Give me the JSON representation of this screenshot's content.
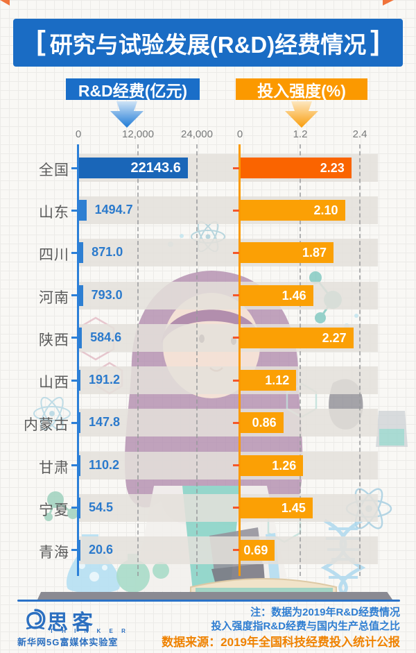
{
  "header": {
    "bracket_left": "[",
    "title": "研究与试验发展(R&D)经费情况",
    "bracket_right": "]",
    "bg_color": "#1a6cc4"
  },
  "legend": {
    "left_label": "R&D经费(亿元)",
    "left_color": "#1a6ec8",
    "right_label": "投入强度(%)",
    "right_color": "#fb9900"
  },
  "chart_data": {
    "type": "bar",
    "orientation": "horizontal",
    "categories": [
      "全国",
      "山东",
      "四川",
      "河南",
      "陕西",
      "山西",
      "内蒙古",
      "甘肃",
      "宁夏",
      "青海"
    ],
    "series": [
      {
        "name": "R&D经费(亿元)",
        "unit": "亿元",
        "values": [
          22143.6,
          1494.7,
          871.0,
          793.0,
          584.6,
          191.2,
          147.8,
          110.2,
          54.5,
          20.6
        ],
        "value_labels": [
          "22143.6",
          "1494.7",
          "871.0",
          "793.0",
          "584.6",
          "191.2",
          "147.8",
          "110.2",
          "54.5",
          "20.6"
        ],
        "axis_max": 24000,
        "axis_ticks": [
          {
            "label": "0",
            "value": 0
          },
          {
            "label": "12,000",
            "value": 12000
          },
          {
            "label": "24,000",
            "value": 24000
          }
        ],
        "bar_color": "#2e7fd2",
        "highlight_color": "#1a66b8",
        "axis_color": "#2b7fd8"
      },
      {
        "name": "投入强度(%)",
        "unit": "%",
        "values": [
          2.23,
          2.1,
          1.87,
          1.46,
          2.27,
          1.12,
          0.86,
          1.26,
          1.45,
          0.69
        ],
        "value_labels": [
          "2.23",
          "2.10",
          "1.87",
          "1.46",
          "2.27",
          "1.12",
          "0.86",
          "1.26",
          "1.45",
          "0.69"
        ],
        "axis_max": 2.4,
        "axis_ticks": [
          {
            "label": "0",
            "value": 0
          },
          {
            "label": "1.2",
            "value": 1.2
          },
          {
            "label": "2.4",
            "value": 2.4
          }
        ],
        "bar_color": "#fba005",
        "highlight_color": "#fa6400",
        "axis_color": "#fb9a00"
      }
    ],
    "highlight_row": "全国",
    "grid": true,
    "legend_position": "top"
  },
  "footer": {
    "logo": {
      "brand": "思客",
      "sub_brand": "T H I N K E R",
      "org": "新华网5G富媒体实验室"
    },
    "notes": [
      "注：数据为2019年R&D经费情况",
      "投入强度指R&D经费与国内生产总值之比"
    ],
    "source": "数据来源：2019年全国科技经费投入统计公报"
  }
}
